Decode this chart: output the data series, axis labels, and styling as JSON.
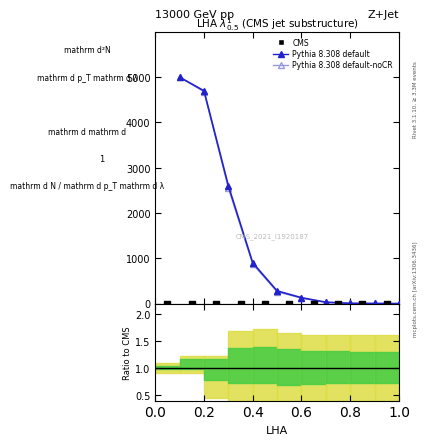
{
  "title": "13000 GeV pp",
  "right_title": "Z+Jet",
  "plot_title": "LHA $\\lambda^{1}_{0.5}$ (CMS jet substructure)",
  "xlabel": "LHA",
  "ylabel_lines": [
    "mathrm d²N",
    "mathrm d pₜ mathrm dλ",
    "mathrm d₁mathrm d",
    "1",
    "mathrm d N / mathrm d p_T mathrm d lambda"
  ],
  "rivet_label": "Rivet 3.1.10, ≥ 3.3M events",
  "mcplots_label": "mcplots.cern.ch [arXiv:1306.3436]",
  "watermark": "CMS_2021_I1920187",
  "cms_x": [
    0.05,
    0.15,
    0.25,
    0.35,
    0.45,
    0.55,
    0.65,
    0.75,
    0.85,
    0.95
  ],
  "pythia_x": [
    0.1,
    0.2,
    0.3,
    0.4,
    0.5,
    0.6,
    0.7,
    0.8,
    0.9,
    1.0
  ],
  "pythia_default_y": [
    5000,
    4700,
    2600,
    900,
    280,
    130,
    30,
    5,
    2,
    0
  ],
  "pythia_nocr_y": [
    5000,
    4680,
    2550,
    870,
    260,
    120,
    28,
    4,
    2,
    0
  ],
  "ylim": [
    0,
    6000
  ],
  "yticks": [
    0,
    1000,
    2000,
    3000,
    4000,
    5000
  ],
  "xlim": [
    0,
    1.0
  ],
  "ratio_ylim": [
    0.4,
    2.2
  ],
  "ratio_yticks": [
    0.5,
    1.0,
    1.5,
    2.0
  ],
  "band_edges": [
    0.0,
    0.1,
    0.2,
    0.3,
    0.4,
    0.5,
    0.6,
    0.7,
    0.8,
    0.9,
    1.0
  ],
  "green_lo": [
    0.98,
    0.98,
    0.78,
    0.72,
    0.72,
    0.68,
    0.7,
    0.72,
    0.72,
    0.72
  ],
  "green_hi": [
    1.05,
    1.18,
    1.18,
    1.38,
    1.4,
    1.35,
    1.32,
    1.32,
    1.3,
    1.3
  ],
  "yellow_lo": [
    0.92,
    0.92,
    0.45,
    0.4,
    0.4,
    0.4,
    0.4,
    0.4,
    0.4,
    0.4
  ],
  "yellow_hi": [
    1.1,
    1.22,
    1.22,
    1.7,
    1.72,
    1.65,
    1.62,
    1.62,
    1.62,
    1.62
  ],
  "color_default": "#2222cc",
  "color_nocr": "#9999dd",
  "color_cms": "#000000",
  "color_green": "#44cc44",
  "color_yellow": "#dddd44",
  "legend_cms": "CMS",
  "legend_default": "Pythia 8.308 default",
  "legend_nocr": "Pythia 8.308 default-noCR"
}
